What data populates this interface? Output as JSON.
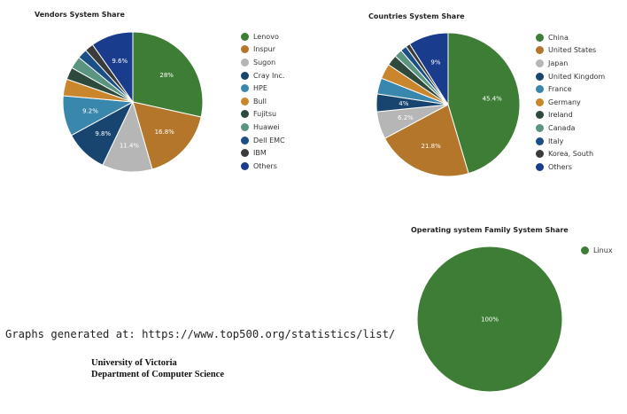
{
  "chart_data": [
    {
      "type": "pie",
      "title": "Vendors System Share",
      "categories": [
        "Lenovo",
        "Inspur",
        "Sugon",
        "Cray Inc.",
        "HPE",
        "Bull",
        "Fujitsu",
        "Huawei",
        "Dell EMC",
        "IBM",
        "Others"
      ],
      "values": [
        28,
        16.8,
        11.4,
        9.8,
        9.2,
        3.8,
        2.8,
        2.8,
        2.2,
        2.0,
        9.6
      ],
      "value_labels": [
        "28%",
        "16.8%",
        "11.4%",
        "9.8%",
        "9.2%",
        "",
        "",
        "",
        "",
        "",
        "9.6%"
      ],
      "colors": [
        "#3e7d35",
        "#b3762a",
        "#b6b6b6",
        "#17456f",
        "#3a87ae",
        "#c9862c",
        "#2d4a3c",
        "#5b9481",
        "#1b4f86",
        "#3b3b3b",
        "#1a3c8c"
      ],
      "legend_position": "right"
    },
    {
      "type": "pie",
      "title": "Countries System Share",
      "categories": [
        "China",
        "United States",
        "Japan",
        "United Kingdom",
        "France",
        "Germany",
        "Ireland",
        "Canada",
        "Italy",
        "Korea, South",
        "Others"
      ],
      "values": [
        45.4,
        21.8,
        6.2,
        4,
        3.6,
        3.4,
        2.4,
        1.8,
        1.4,
        1.0,
        9
      ],
      "value_labels": [
        "45.4%",
        "21.8%",
        "6.2%",
        "4%",
        "",
        "",
        "",
        "",
        "",
        "",
        "9%"
      ],
      "colors": [
        "#3e7d35",
        "#b3762a",
        "#b6b6b6",
        "#17456f",
        "#3a87ae",
        "#c9862c",
        "#2d4a3c",
        "#5b9481",
        "#1b4f86",
        "#3b3b3b",
        "#1a3c8c"
      ],
      "legend_position": "right"
    },
    {
      "type": "pie",
      "title": "Operating system Family System Share",
      "categories": [
        "Linux"
      ],
      "values": [
        100
      ],
      "value_labels": [
        "100%"
      ],
      "colors": [
        "#3e7d35"
      ],
      "legend_position": "top-right"
    }
  ],
  "footer": {
    "source_note": "Graphs generated at: https://www.top500.org/statistics/list/",
    "university": "University of Victoria",
    "department": "Department of Computer Science"
  }
}
